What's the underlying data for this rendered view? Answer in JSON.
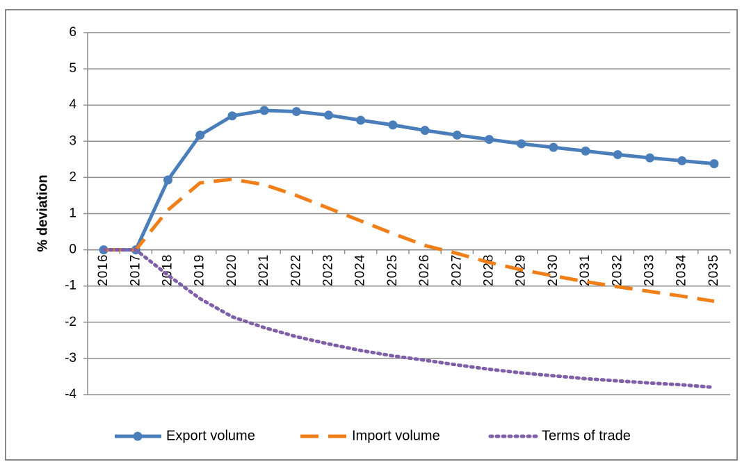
{
  "chart_data": {
    "type": "line",
    "y_label": "% deviation",
    "categories": [
      "2016",
      "2017",
      "2018",
      "2019",
      "2020",
      "2021",
      "2022",
      "2023",
      "2024",
      "2025",
      "2026",
      "2027",
      "2028",
      "2029",
      "2030",
      "2031",
      "2032",
      "2033",
      "2034",
      "2035"
    ],
    "series": [
      {
        "name": "Export volume",
        "color": "#4a7ebb",
        "style": "solid-marker",
        "values": [
          0,
          0,
          1.93,
          3.17,
          3.7,
          3.85,
          3.82,
          3.72,
          3.58,
          3.45,
          3.3,
          3.17,
          3.05,
          2.93,
          2.83,
          2.73,
          2.63,
          2.54,
          2.46,
          2.38
        ]
      },
      {
        "name": "Import volume",
        "color": "#f07f19",
        "style": "dashed",
        "values": [
          0,
          0,
          1.1,
          1.85,
          1.95,
          1.8,
          1.5,
          1.15,
          0.8,
          0.45,
          0.12,
          -0.1,
          -0.35,
          -0.55,
          -0.72,
          -0.88,
          -1.02,
          -1.15,
          -1.28,
          -1.42
        ]
      },
      {
        "name": "Terms of trade",
        "color": "#7f60a8",
        "style": "dotted",
        "values": [
          0,
          0,
          -0.7,
          -1.35,
          -1.85,
          -2.15,
          -2.4,
          -2.6,
          -2.78,
          -2.93,
          -3.05,
          -3.18,
          -3.3,
          -3.4,
          -3.48,
          -3.56,
          -3.62,
          -3.68,
          -3.73,
          -3.8
        ]
      }
    ],
    "ylim": [
      -4,
      6
    ],
    "yticks": [
      -4,
      -3,
      -2,
      -1,
      0,
      1,
      2,
      3,
      4,
      5,
      6
    ],
    "grid": true,
    "legend": "bottom"
  }
}
